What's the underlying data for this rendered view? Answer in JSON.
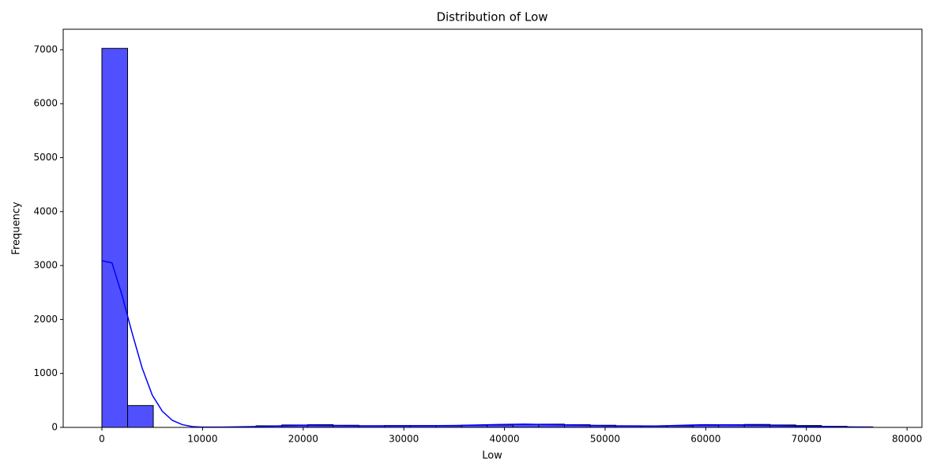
{
  "chart_data": {
    "type": "histogram",
    "title": "Distribution of Low",
    "x_label": "Low",
    "y_label": "Frequency",
    "bins": [
      0,
      2553,
      5107,
      7660,
      10213,
      12767,
      15320,
      17873,
      20427,
      22980,
      25533,
      28087,
      30640,
      33193,
      35747,
      38300,
      40853,
      43407,
      45960,
      48513,
      51067,
      53620,
      56173,
      58727,
      61280,
      63833,
      66387,
      68940,
      71493,
      74047,
      76600
    ],
    "counts": [
      7025,
      405,
      0,
      0,
      0,
      0,
      30,
      45,
      50,
      40,
      30,
      35,
      35,
      30,
      40,
      45,
      55,
      60,
      50,
      40,
      30,
      25,
      30,
      40,
      50,
      55,
      45,
      35,
      20,
      10
    ],
    "color": "#5050ff",
    "kde": {
      "color": "#0000ff",
      "x": [
        0,
        1000,
        2000,
        3000,
        4000,
        5000,
        6000,
        7000,
        8000,
        9000,
        10000,
        12000,
        15000,
        20000,
        25000,
        30000,
        35000,
        40000,
        42000,
        45000,
        50000,
        55000,
        60000,
        65000,
        70000,
        75000,
        76600
      ],
      "values": [
        3090,
        3050,
        2450,
        1750,
        1100,
        600,
        300,
        130,
        50,
        15,
        5,
        5,
        15,
        40,
        30,
        30,
        35,
        55,
        60,
        50,
        30,
        25,
        50,
        40,
        20,
        5,
        3
      ]
    },
    "xlim": [
      -3846,
      81480
    ],
    "ylim": [
      0,
      7380
    ],
    "xticks": [
      0,
      10000,
      20000,
      30000,
      40000,
      50000,
      60000,
      70000,
      80000
    ],
    "yticks": [
      0,
      1000,
      2000,
      3000,
      4000,
      5000,
      6000,
      7000
    ]
  }
}
